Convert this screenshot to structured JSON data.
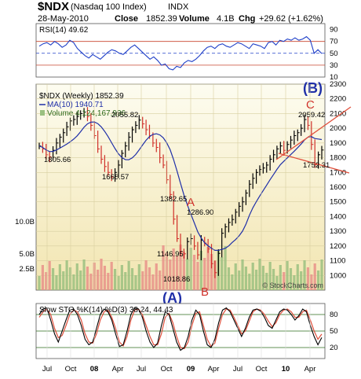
{
  "chart_data": {
    "type": "line",
    "header": {
      "symbol": "$NDX",
      "name": "(Nasdaq 100 Index)",
      "exchange": "INDX",
      "date": "28-May-2010",
      "close_label": "Close",
      "close": "1852.39",
      "volume_label": "Volume",
      "volume": "4.1B",
      "chg_label": "Chg",
      "chg": "+29.62 (+1.62%)",
      "watermark": "© StockCharts.com"
    },
    "x_tick_labels": [
      "Jul",
      "Oct",
      "08",
      "Apr",
      "Jul",
      "Oct",
      "09",
      "Apr",
      "Jul",
      "Oct",
      "10",
      "Apr"
    ],
    "rsi": {
      "label": "RSI(14) 49.62",
      "ylim": [
        10,
        100
      ],
      "yticks": [
        "90",
        "70",
        "50",
        "30",
        "10"
      ],
      "overbought": 70,
      "oversold": 30,
      "values": [
        62,
        66,
        68,
        64,
        70,
        66,
        60,
        64,
        72,
        68,
        58,
        52,
        46,
        42,
        48,
        44,
        40,
        46,
        52,
        56,
        54,
        50,
        48,
        54,
        60,
        64,
        58,
        52,
        46,
        40,
        44,
        38,
        30,
        32,
        24,
        22,
        28,
        26,
        34,
        38,
        36,
        40,
        46,
        54,
        60,
        62,
        58,
        64,
        66,
        62,
        60,
        64,
        68,
        66,
        62,
        58,
        66,
        64,
        62,
        58,
        68,
        70,
        64,
        72,
        70,
        74,
        72,
        76,
        72,
        74,
        78,
        72,
        50,
        56,
        49.62
      ]
    },
    "price": {
      "legend_price": "$NDX (Weekly) 1852.39",
      "legend_ma": "MA(10) 1940.71",
      "legend_volume": "Volume 4,124,167,936",
      "ylim": [
        900,
        2300
      ],
      "yticks": [
        "2300",
        "2200",
        "2100",
        "2000",
        "1900",
        "1800",
        "1700",
        "1600",
        "1500",
        "1400",
        "1300",
        "1200",
        "1100",
        "1000"
      ],
      "volume_ticks": [
        "10.0B",
        "5.0B",
        "2.5B"
      ],
      "close": [
        1880,
        1860,
        1820,
        1805.66,
        1850,
        1900,
        1940,
        1970,
        2010,
        2050,
        2060,
        2080,
        2100,
        2110,
        2080,
        2020,
        1950,
        1860,
        1790,
        1740,
        1700,
        1668.57,
        1700,
        1750,
        1830,
        1880,
        1940,
        1990,
        2020,
        2055.82,
        2030,
        1990,
        1950,
        1900,
        1870,
        1800,
        1750,
        1650,
        1550,
        1382.65,
        1250,
        1160,
        1146.95,
        1230,
        1250,
        1200,
        1140,
        1240,
        1220,
        1180,
        1080,
        1018.86,
        1150,
        1286.9,
        1330,
        1360,
        1380,
        1430,
        1470,
        1500,
        1560,
        1620,
        1660,
        1700,
        1720,
        1730,
        1750,
        1790,
        1820,
        1860,
        1880,
        1850,
        1890,
        1920,
        1950,
        1970,
        2000,
        2059.42,
        2020,
        1890,
        1752.31,
        1820,
        1852.39
      ],
      "annotations": {
        "1805.66": "1805.66",
        "1668.57": "1668.57",
        "2055.82": "2055.82",
        "1382.65": "1382.65",
        "1146.95": "1146.95",
        "1018.86": "1018.86",
        "1286.90": "1286.90",
        "2059.42": "2059.42",
        "1752.31": "1752.31"
      },
      "wave_labels": {
        "A": "A",
        "B": "B",
        "C": "C",
        "big_B": "(B)",
        "big_A": "(A)"
      }
    },
    "sto": {
      "label": "Slow STO %K(14) %D(3) 38.24, 44.43",
      "ylim": [
        0,
        100
      ],
      "yticks": [
        "80",
        "50",
        "20"
      ],
      "k": [
        80,
        90,
        92,
        70,
        45,
        30,
        50,
        70,
        88,
        90,
        80,
        60,
        35,
        25,
        30,
        55,
        80,
        90,
        85,
        70,
        45,
        22,
        25,
        50,
        80,
        92,
        90,
        75,
        50,
        30,
        20,
        28,
        60,
        85,
        80,
        55,
        30,
        15,
        20,
        40,
        70,
        88,
        80,
        50,
        25,
        20,
        35,
        65,
        88,
        92,
        85,
        70,
        55,
        40,
        55,
        75,
        88,
        90,
        86,
        75,
        60,
        55,
        70,
        85,
        90,
        88,
        80,
        70,
        78,
        90,
        85,
        60,
        40,
        25,
        38.24
      ],
      "d": [
        75,
        85,
        90,
        80,
        55,
        38,
        42,
        60,
        80,
        88,
        85,
        70,
        45,
        30,
        28,
        45,
        70,
        85,
        88,
        75,
        55,
        30,
        23,
        40,
        70,
        88,
        90,
        80,
        60,
        40,
        25,
        25,
        45,
        75,
        82,
        65,
        40,
        20,
        18,
        30,
        60,
        82,
        85,
        60,
        35,
        22,
        28,
        55,
        80,
        90,
        88,
        75,
        60,
        45,
        50,
        68,
        85,
        90,
        88,
        80,
        68,
        58,
        65,
        80,
        88,
        90,
        85,
        75,
        75,
        85,
        88,
        70,
        50,
        35,
        44.43
      ]
    }
  }
}
